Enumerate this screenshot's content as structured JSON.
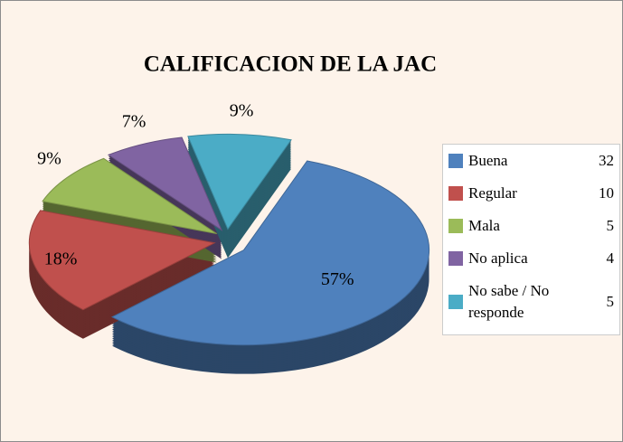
{
  "chart_data": {
    "type": "pie",
    "title": "CALIFICACION DE LA JAC",
    "categories": [
      "Buena",
      "Regular",
      "Mala",
      "No aplica",
      "No sabe / No responde"
    ],
    "values": [
      57,
      18,
      9,
      7,
      9
    ],
    "value_labels": [
      "57%",
      "18%",
      "9%",
      "7%",
      "9%"
    ],
    "legend_values": [
      32,
      10,
      5,
      4,
      5
    ],
    "colors": [
      "#4f81bd",
      "#c0504d",
      "#9bbb59",
      "#8064a2",
      "#4bacc6"
    ],
    "legend": "right"
  }
}
